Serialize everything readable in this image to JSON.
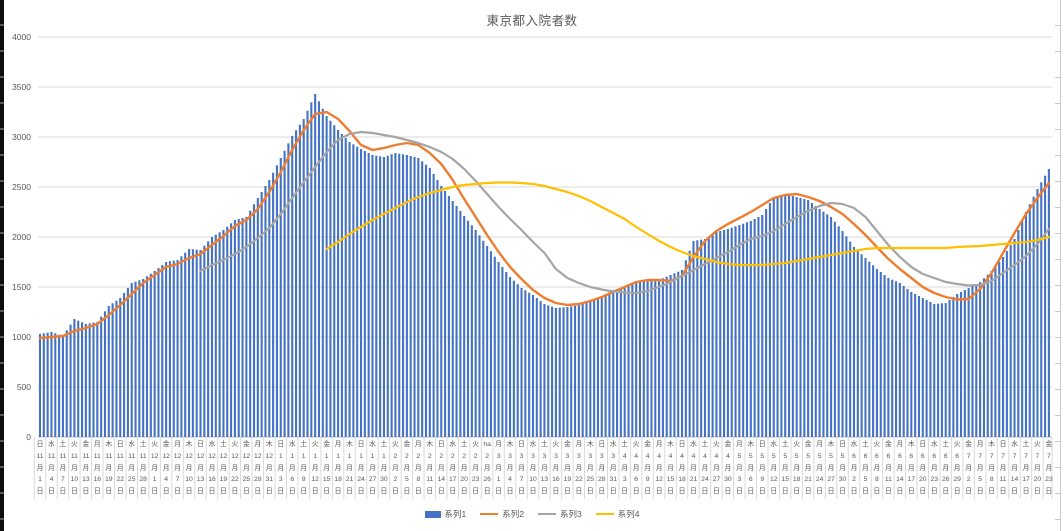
{
  "title": "東京都入院者数",
  "y_axis": {
    "ticks": [
      "0",
      "500",
      "1000",
      "1500",
      "2000",
      "2500",
      "3000",
      "3500",
      "4000"
    ],
    "min": 0,
    "max": 4000,
    "step": 500
  },
  "colors": {
    "bar_blue": "#4472C4",
    "line_orange": "#ED7D31",
    "line_gray": "#A5A5A5",
    "line_yellow": "#FFC000",
    "gridline": "#D9D9D9",
    "axis_line": "#BFBFBF",
    "axis_text": "#595959",
    "title_text": "#595959"
  },
  "legend": {
    "items": [
      {
        "label": "系列1",
        "color": "#4472C4",
        "swatch": "bar"
      },
      {
        "label": "系列2",
        "color": "#ED7D31",
        "swatch": "line"
      },
      {
        "label": "系列3",
        "color": "#A5A5A5",
        "swatch": "line"
      },
      {
        "label": "系列4",
        "color": "#FFC000",
        "swatch": "line"
      }
    ]
  },
  "chart_data": {
    "type": "combo",
    "title": "東京都入院者数",
    "xlabel": "",
    "ylabel": "",
    "ylim": [
      0,
      4000
    ],
    "grid": true,
    "legend_position": "bottom",
    "x_sampling": "labels every 3 days, daily bars",
    "categories": [
      "日 11月1日",
      "水 11月4日",
      "土 11月7日",
      "火 11月10日",
      "金 11月13日",
      "月 11月16日",
      "木 11月19日",
      "日 11月22日",
      "水 11月25日",
      "土 11月28日",
      "火 12月1日",
      "金 12月4日",
      "月 12月7日",
      "木 12月10日",
      "日 12月13日",
      "水 12月16日",
      "土 12月19日",
      "火 12月22日",
      "金 12月25日",
      "月 12月28日",
      "木 12月31日",
      "日 1月3日",
      "水 1月6日",
      "土 1月9日",
      "火 1月12日",
      "金 1月15日",
      "月 1月18日",
      "木 1月21日",
      "日 1月24日",
      "水 1月27日",
      "土 1月30日",
      "火 2月2日",
      "金 2月5日",
      "月 2月8日",
      "木 2月11日",
      "日 2月14日",
      "水 2月17日",
      "土 2月20日",
      "火 2月23日",
      "ha 2月26日",
      "月 3月1日",
      "木 3月4日",
      "日 3月7日",
      "水 3月10日",
      "土 3月13日",
      "火 3月16日",
      "金 3月19日",
      "月 3月22日",
      "木 3月25日",
      "日 3月28日",
      "水 3月31日",
      "土 4月3日",
      "火 4月6日",
      "金 4月9日",
      "月 4月12日",
      "木 4月15日",
      "日 4月18日",
      "水 4月21日",
      "土 4月24日",
      "火 4月27日",
      "金 4月30日",
      "月 5月3日",
      "木 5月6日",
      "日 5月9日",
      "水 5月12日",
      "土 5月15日",
      "火 5月18日",
      "金 5月21日",
      "月 5月24日",
      "木 5月27日",
      "日 5月30日",
      "水 6月2日",
      "土 6月5日",
      "火 6月8日",
      "金 6月11日",
      "月 6月14日",
      "木 6月17日",
      "日 6月20日",
      "水 6月23日",
      "土 6月26日",
      "火 6月29日",
      "金 7月2日",
      "月 7月5日",
      "木 7月8日",
      "日 7月11日",
      "水 7月14日",
      "土 7月17日",
      "火 7月20日",
      "金 7月23日"
    ],
    "series": [
      {
        "name": "系列1",
        "type": "bar",
        "color": "#4472C4",
        "values": [
          1030,
          1050,
          1010,
          1180,
          1130,
          1150,
          1310,
          1390,
          1540,
          1580,
          1660,
          1750,
          1770,
          1880,
          1870,
          2000,
          2070,
          2170,
          2200,
          2390,
          2570,
          2790,
          3010,
          3180,
          3430,
          3210,
          3070,
          2950,
          2880,
          2820,
          2800,
          2840,
          2820,
          2790,
          2690,
          2510,
          2360,
          2210,
          2070,
          1910,
          1750,
          1600,
          1490,
          1420,
          1330,
          1290,
          1300,
          1320,
          1360,
          1400,
          1470,
          1500,
          1540,
          1570,
          1570,
          1620,
          1670,
          1960,
          1980,
          2050,
          2080,
          2120,
          2160,
          2220,
          2400,
          2430,
          2400,
          2370,
          2280,
          2200,
          2060,
          1900,
          1790,
          1680,
          1590,
          1540,
          1450,
          1390,
          1330,
          1340,
          1430,
          1490,
          1550,
          1660,
          1800,
          1980,
          2250,
          2480,
          2680
        ]
      },
      {
        "name": "系列2",
        "type": "line",
        "color": "#ED7D31",
        "values": [
          990,
          1000,
          1010,
          1060,
          1090,
          1130,
          1220,
          1320,
          1430,
          1540,
          1620,
          1700,
          1730,
          1790,
          1830,
          1920,
          2010,
          2110,
          2170,
          2280,
          2450,
          2650,
          2870,
          3070,
          3230,
          3250,
          3180,
          3060,
          2920,
          2870,
          2890,
          2920,
          2940,
          2920,
          2840,
          2730,
          2570,
          2380,
          2200,
          2020,
          1850,
          1700,
          1580,
          1470,
          1390,
          1340,
          1320,
          1330,
          1360,
          1400,
          1450,
          1500,
          1550,
          1570,
          1570,
          1560,
          1610,
          1800,
          1960,
          2060,
          2130,
          2190,
          2250,
          2320,
          2390,
          2420,
          2430,
          2400,
          2360,
          2300,
          2230,
          2130,
          2020,
          1900,
          1780,
          1680,
          1590,
          1500,
          1440,
          1400,
          1375,
          1380,
          1480,
          1640,
          1840,
          2040,
          2230,
          2390,
          2540
        ]
      },
      {
        "name": "系列3",
        "type": "line",
        "color": "#A5A5A5",
        "values": [
          null,
          null,
          null,
          null,
          null,
          null,
          null,
          null,
          null,
          null,
          null,
          null,
          null,
          null,
          1660,
          1720,
          1770,
          1830,
          1900,
          1990,
          2090,
          2230,
          2390,
          2550,
          2700,
          2850,
          2970,
          3030,
          3050,
          3040,
          3020,
          3000,
          2970,
          2940,
          2900,
          2850,
          2780,
          2680,
          2560,
          2430,
          2300,
          2180,
          2070,
          1950,
          1840,
          1680,
          1590,
          1540,
          1500,
          1475,
          1455,
          1445,
          1440,
          1460,
          1500,
          1550,
          1610,
          1670,
          1730,
          1790,
          1850,
          1920,
          1980,
          2010,
          2060,
          2130,
          2200,
          2260,
          2310,
          2340,
          2330,
          2290,
          2200,
          2060,
          1920,
          1800,
          1700,
          1630,
          1590,
          1550,
          1530,
          1515,
          1520,
          1560,
          1640,
          1720,
          1810,
          1930,
          2080
        ]
      },
      {
        "name": "系列4",
        "type": "line",
        "color": "#FFC000",
        "values": [
          null,
          null,
          null,
          null,
          null,
          null,
          null,
          null,
          null,
          null,
          null,
          null,
          null,
          null,
          null,
          null,
          null,
          null,
          null,
          null,
          null,
          null,
          null,
          null,
          null,
          1880,
          1950,
          2030,
          2100,
          2170,
          2230,
          2290,
          2350,
          2400,
          2440,
          2470,
          2500,
          2520,
          2530,
          2540,
          2545,
          2545,
          2540,
          2530,
          2510,
          2480,
          2450,
          2410,
          2360,
          2300,
          2240,
          2180,
          2100,
          2030,
          1960,
          1900,
          1850,
          1810,
          1780,
          1750,
          1730,
          1720,
          1720,
          1720,
          1730,
          1740,
          1760,
          1780,
          1800,
          1820,
          1840,
          1860,
          1880,
          1890,
          1890,
          1890,
          1890,
          1890,
          1890,
          1890,
          1900,
          1905,
          1910,
          1920,
          1930,
          1940,
          1950,
          1970,
          2000
        ]
      }
    ]
  }
}
